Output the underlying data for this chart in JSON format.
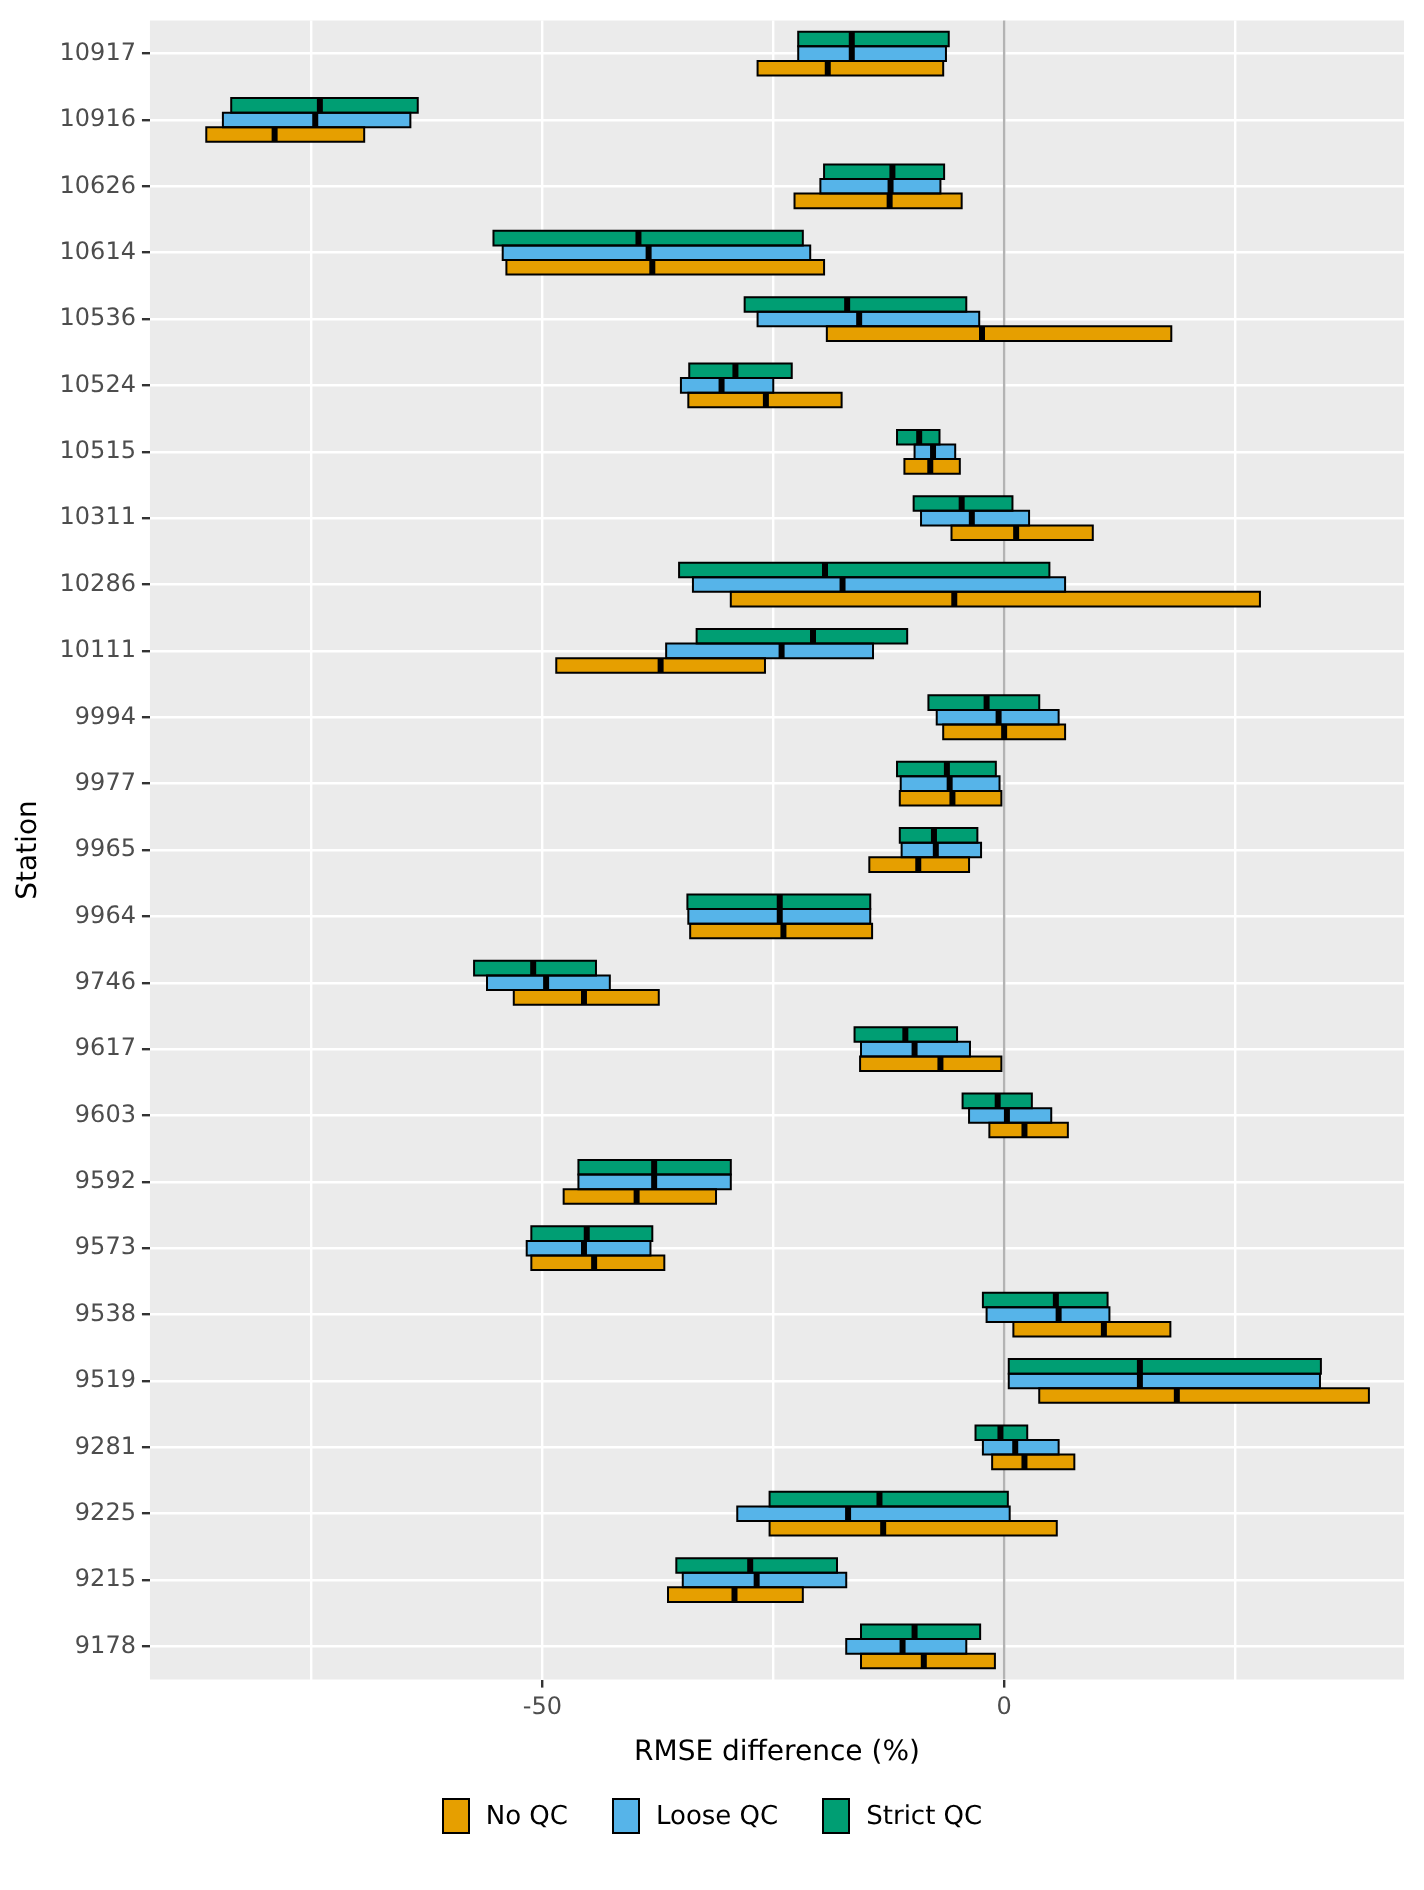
{
  "chart_data": {
    "type": "box",
    "orientation": "horizontal",
    "xlabel": "RMSE difference (%)",
    "ylabel": "Station",
    "categories": [
      "10917",
      "10916",
      "10626",
      "10614",
      "10536",
      "10524",
      "10515",
      "10311",
      "10286",
      "10111",
      "9994",
      "9977",
      "9965",
      "9964",
      "9746",
      "9617",
      "9603",
      "9592",
      "9573",
      "9538",
      "9519",
      "9281",
      "9225",
      "9215",
      "9178"
    ],
    "xlim": [
      -92.5,
      43.3
    ],
    "xticks": [
      {
        "value": -75,
        "label": null
      },
      -50,
      {
        "value": -25,
        "label": null
      },
      0,
      {
        "value": 25,
        "label": null
      }
    ],
    "grid": true,
    "legend": "bottom",
    "ref_lines": [
      {
        "axis": "x",
        "value": 0,
        "label": null,
        "color": "#b3b3b3"
      }
    ],
    "series": [
      {
        "name": "No QC",
        "color": "#e69f00",
        "boxes": [
          {
            "low": -26.7,
            "q1": -26.7,
            "median": -19.1,
            "q3": -6.6,
            "high": -6.6
          },
          {
            "low": -86.4,
            "q1": -86.4,
            "median": -79.0,
            "q3": -69.3,
            "high": -69.3
          },
          {
            "low": -22.7,
            "q1": -22.7,
            "median": -12.4,
            "q3": -4.6,
            "high": -4.6
          },
          {
            "low": -53.9,
            "q1": -53.9,
            "median": -38.1,
            "q3": -19.5,
            "high": -19.5
          },
          {
            "low": -19.2,
            "q1": -19.2,
            "median": -2.4,
            "q3": 18.1,
            "high": 18.1
          },
          {
            "low": -34.2,
            "q1": -34.2,
            "median": -25.8,
            "q3": -17.6,
            "high": -17.6
          },
          {
            "low": -10.8,
            "q1": -10.8,
            "median": -8.0,
            "q3": -4.8,
            "high": -4.8
          },
          {
            "low": -5.7,
            "q1": -5.7,
            "median": 1.3,
            "q3": 9.6,
            "high": 9.6
          },
          {
            "low": -29.6,
            "q1": -29.6,
            "median": -5.4,
            "q3": 27.7,
            "high": 27.7
          },
          {
            "low": -48.5,
            "q1": -48.5,
            "median": -37.2,
            "q3": -25.9,
            "high": -25.9
          },
          {
            "low": -6.6,
            "q1": -6.6,
            "median": 0.0,
            "q3": 6.6,
            "high": 6.6
          },
          {
            "low": -11.3,
            "q1": -11.3,
            "median": -5.6,
            "q3": -0.3,
            "high": -0.3
          },
          {
            "low": -14.6,
            "q1": -14.6,
            "median": -9.3,
            "q3": -3.8,
            "high": -3.8
          },
          {
            "low": -34.0,
            "q1": -34.0,
            "median": -23.9,
            "q3": -14.3,
            "high": -14.3
          },
          {
            "low": -53.1,
            "q1": -53.1,
            "median": -45.5,
            "q3": -37.4,
            "high": -37.4
          },
          {
            "low": -15.6,
            "q1": -15.6,
            "median": -6.9,
            "q3": -0.3,
            "high": -0.3
          },
          {
            "low": -1.6,
            "q1": -1.6,
            "median": 2.2,
            "q3": 6.9,
            "high": 6.9
          },
          {
            "low": -47.7,
            "q1": -47.7,
            "median": -39.8,
            "q3": -31.2,
            "high": -31.2
          },
          {
            "low": -51.2,
            "q1": -51.2,
            "median": -44.4,
            "q3": -36.8,
            "high": -36.8
          },
          {
            "low": 1.0,
            "q1": 1.0,
            "median": 10.8,
            "q3": 18.0,
            "high": 18.0
          },
          {
            "low": 3.8,
            "q1": 3.8,
            "median": 18.7,
            "q3": 39.5,
            "high": 39.5
          },
          {
            "low": -1.3,
            "q1": -1.3,
            "median": 2.2,
            "q3": 7.6,
            "high": 7.6
          },
          {
            "low": -25.4,
            "q1": -25.4,
            "median": -13.1,
            "q3": 5.7,
            "high": 5.7
          },
          {
            "low": -36.4,
            "q1": -36.4,
            "median": -29.2,
            "q3": -21.8,
            "high": -21.8
          },
          {
            "low": -15.5,
            "q1": -15.5,
            "median": -8.7,
            "q3": -1.0,
            "high": -1.0
          }
        ]
      },
      {
        "name": "Loose QC",
        "color": "#56b4e9",
        "boxes": [
          {
            "low": -22.3,
            "q1": -22.3,
            "median": -16.5,
            "q3": -6.3,
            "high": -6.3
          },
          {
            "low": -84.6,
            "q1": -84.6,
            "median": -74.6,
            "q3": -64.3,
            "high": -64.3
          },
          {
            "low": -19.9,
            "q1": -19.9,
            "median": -12.3,
            "q3": -6.9,
            "high": -6.9
          },
          {
            "low": -54.3,
            "q1": -54.3,
            "median": -38.5,
            "q3": -21.0,
            "high": -21.0
          },
          {
            "low": -26.7,
            "q1": -26.7,
            "median": -15.7,
            "q3": -2.7,
            "high": -2.7
          },
          {
            "low": -35.0,
            "q1": -35.0,
            "median": -30.6,
            "q3": -25.0,
            "high": -25.0
          },
          {
            "low": -9.7,
            "q1": -9.7,
            "median": -7.7,
            "q3": -5.3,
            "high": -5.3
          },
          {
            "low": -9.0,
            "q1": -9.0,
            "median": -3.5,
            "q3": 2.7,
            "high": 2.7
          },
          {
            "low": -33.7,
            "q1": -33.7,
            "median": -17.5,
            "q3": 6.6,
            "high": 6.6
          },
          {
            "low": -36.6,
            "q1": -36.6,
            "median": -24.1,
            "q3": -14.2,
            "high": -14.2
          },
          {
            "low": -7.3,
            "q1": -7.3,
            "median": -0.6,
            "q3": 5.9,
            "high": 5.9
          },
          {
            "low": -11.2,
            "q1": -11.2,
            "median": -5.9,
            "q3": -0.5,
            "high": -0.5
          },
          {
            "low": -11.1,
            "q1": -11.1,
            "median": -7.4,
            "q3": -2.5,
            "high": -2.5
          },
          {
            "low": -34.2,
            "q1": -34.2,
            "median": -24.3,
            "q3": -14.5,
            "high": -14.5
          },
          {
            "low": -56.0,
            "q1": -56.0,
            "median": -49.6,
            "q3": -42.7,
            "high": -42.7
          },
          {
            "low": -15.5,
            "q1": -15.5,
            "median": -9.7,
            "q3": -3.7,
            "high": -3.7
          },
          {
            "low": -3.8,
            "q1": -3.8,
            "median": 0.3,
            "q3": 5.1,
            "high": 5.1
          },
          {
            "low": -46.1,
            "q1": -46.1,
            "median": -37.9,
            "q3": -29.6,
            "high": -29.6
          },
          {
            "low": -51.7,
            "q1": -51.7,
            "median": -45.5,
            "q3": -38.3,
            "high": -38.3
          },
          {
            "low": -1.9,
            "q1": -1.9,
            "median": 5.9,
            "q3": 11.4,
            "high": 11.4
          },
          {
            "low": 0.5,
            "q1": 0.5,
            "median": 14.7,
            "q3": 34.2,
            "high": 34.2
          },
          {
            "low": -2.3,
            "q1": -2.3,
            "median": 1.2,
            "q3": 5.9,
            "high": 5.9
          },
          {
            "low": -28.9,
            "q1": -28.9,
            "median": -16.9,
            "q3": 0.6,
            "high": 0.6
          },
          {
            "low": -34.8,
            "q1": -34.8,
            "median": -26.8,
            "q3": -17.1,
            "high": -17.1
          },
          {
            "low": -17.1,
            "q1": -17.1,
            "median": -11.0,
            "q3": -4.1,
            "high": -4.1
          }
        ]
      },
      {
        "name": "Strict QC",
        "color": "#009e73",
        "boxes": [
          {
            "low": -22.3,
            "q1": -22.3,
            "median": -16.5,
            "q3": -6.0,
            "high": -6.0
          },
          {
            "low": -83.7,
            "q1": -83.7,
            "median": -74.1,
            "q3": -63.5,
            "high": -63.5
          },
          {
            "low": -19.5,
            "q1": -19.5,
            "median": -12.1,
            "q3": -6.5,
            "high": -6.5
          },
          {
            "low": -55.3,
            "q1": -55.3,
            "median": -39.6,
            "q3": -21.8,
            "high": -21.8
          },
          {
            "low": -28.1,
            "q1": -28.1,
            "median": -17.0,
            "q3": -4.1,
            "high": -4.1
          },
          {
            "low": -34.1,
            "q1": -34.1,
            "median": -29.1,
            "q3": -23.0,
            "high": -23.0
          },
          {
            "low": -11.6,
            "q1": -11.6,
            "median": -9.2,
            "q3": -7.0,
            "high": -7.0
          },
          {
            "low": -9.8,
            "q1": -9.8,
            "median": -4.6,
            "q3": 0.9,
            "high": 0.9
          },
          {
            "low": -35.2,
            "q1": -35.2,
            "median": -19.4,
            "q3": 4.9,
            "high": 4.9
          },
          {
            "low": -33.3,
            "q1": -33.3,
            "median": -20.7,
            "q3": -10.5,
            "high": -10.5
          },
          {
            "low": -8.2,
            "q1": -8.2,
            "median": -1.9,
            "q3": 3.8,
            "high": 3.8
          },
          {
            "low": -11.6,
            "q1": -11.6,
            "median": -6.2,
            "q3": -0.9,
            "high": -0.9
          },
          {
            "low": -11.3,
            "q1": -11.3,
            "median": -7.6,
            "q3": -2.9,
            "high": -2.9
          },
          {
            "low": -34.3,
            "q1": -34.3,
            "median": -24.3,
            "q3": -14.5,
            "high": -14.5
          },
          {
            "low": -57.4,
            "q1": -57.4,
            "median": -51.0,
            "q3": -44.2,
            "high": -44.2
          },
          {
            "low": -16.2,
            "q1": -16.2,
            "median": -10.7,
            "q3": -5.1,
            "high": -5.1
          },
          {
            "low": -4.5,
            "q1": -4.5,
            "median": -0.7,
            "q3": 3.0,
            "high": 3.0
          },
          {
            "low": -46.1,
            "q1": -46.1,
            "median": -37.9,
            "q3": -29.6,
            "high": -29.6
          },
          {
            "low": -51.2,
            "q1": -51.2,
            "median": -45.2,
            "q3": -38.1,
            "high": -38.1
          },
          {
            "low": -2.3,
            "q1": -2.3,
            "median": 5.6,
            "q3": 11.2,
            "high": 11.2
          },
          {
            "low": 0.5,
            "q1": 0.5,
            "median": 14.7,
            "q3": 34.3,
            "high": 34.3
          },
          {
            "low": -3.1,
            "q1": -3.1,
            "median": -0.4,
            "q3": 2.5,
            "high": 2.5
          },
          {
            "low": -25.4,
            "q1": -25.4,
            "median": -13.5,
            "q3": 0.4,
            "high": 0.4
          },
          {
            "low": -35.5,
            "q1": -35.5,
            "median": -27.5,
            "q3": -18.1,
            "high": -18.1
          },
          {
            "low": -15.5,
            "q1": -15.5,
            "median": -9.7,
            "q3": -2.6,
            "high": -2.6
          }
        ]
      }
    ]
  }
}
